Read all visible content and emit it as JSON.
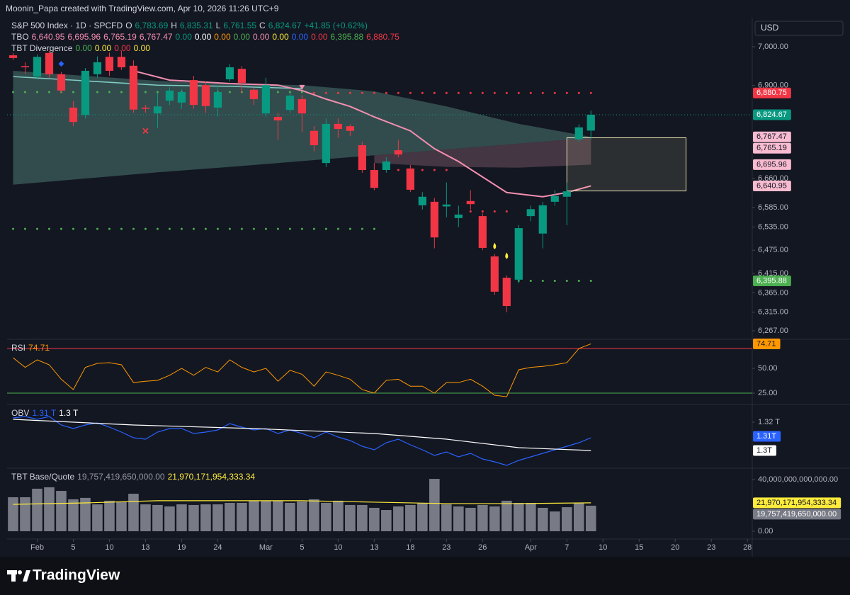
{
  "header": "Moonin_Papa created with TradingView.com, Apr 10, 2026 11:26 UTC+9",
  "currency": "USD",
  "footer": "TradingView",
  "chart_data": [
    {
      "type": "candlestick",
      "up_color": "#089981",
      "down_color": "#f23645",
      "open": [
        6978,
        6950,
        6923,
        6984,
        6929,
        6843,
        6824,
        6929,
        6974,
        6974,
        6951,
        6843,
        6828,
        6861,
        6856,
        6914,
        6901,
        6843,
        6916,
        6943,
        6889,
        6828,
        6819,
        6837,
        6865,
        6783,
        6700,
        6801,
        6795,
        6746,
        6682,
        6682,
        6733,
        6686,
        6591,
        6600,
        6588,
        6558,
        6602,
        6563,
        6459,
        6404,
        6399,
        6563,
        6518,
        6600,
        6613,
        6761,
        6783.69
      ],
      "high": [
        6984,
        6960,
        6980,
        6990,
        6935,
        6860,
        6945,
        6975,
        6985,
        6990,
        6965,
        6850,
        6880,
        6895,
        6890,
        6925,
        6910,
        6900,
        6955,
        6950,
        6895,
        6920,
        6830,
        6880,
        6875,
        6795,
        6815,
        6815,
        6800,
        6755,
        6700,
        6715,
        6760,
        6695,
        6625,
        6610,
        6650,
        6590,
        6630,
        6570,
        6465,
        6410,
        6540,
        6590,
        6600,
        6630,
        6650,
        6800,
        6835.31
      ],
      "low": [
        6966,
        6930,
        6915,
        6920,
        6880,
        6795,
        6815,
        6920,
        6925,
        6940,
        6830,
        6830,
        6790,
        6850,
        6840,
        6840,
        6830,
        6820,
        6910,
        6880,
        6850,
        6820,
        6760,
        6830,
        6780,
        6730,
        6690,
        6765,
        6770,
        6675,
        6630,
        6675,
        6715,
        6625,
        6580,
        6480,
        6560,
        6535,
        6580,
        6475,
        6360,
        6315,
        6390,
        6550,
        6480,
        6590,
        6540,
        6755,
        6761.55
      ],
      "close": [
        6971,
        6947,
        6974,
        6929,
        6887,
        6806,
        6938,
        6960,
        6938,
        6947,
        6838,
        6840,
        6846,
        6887,
        6883,
        6850,
        6847,
        6883,
        6947,
        6907,
        6865,
        6901,
        6810,
        6874,
        6828,
        6746,
        6801,
        6788,
        6783,
        6682,
        6636,
        6704,
        6722,
        6631,
        6613,
        6508,
        6593,
        6567,
        6594,
        6481,
        6368,
        6331,
        6532,
        6581,
        6591,
        6615,
        6627,
        6792,
        6824.67
      ],
      "xlim": [
        -0.5,
        61.4
      ],
      "ylim": [
        6247,
        7075
      ],
      "yticks": [
        {
          "value": 7000,
          "label": "7,000.00"
        },
        {
          "value": 6900,
          "label": "6,900.00"
        },
        {
          "value": 6660,
          "label": "6,660.00"
        },
        {
          "value": 6585,
          "label": "6,585.00"
        },
        {
          "value": 6535,
          "label": "6,535.00"
        },
        {
          "value": 6475,
          "label": "6,475.00"
        },
        {
          "value": 6415,
          "label": "6,415.00"
        },
        {
          "value": 6365,
          "label": "6,365.00"
        },
        {
          "value": 6315,
          "label": "6,315.00"
        },
        {
          "value": 6267,
          "label": "6,267.00"
        }
      ],
      "legend_rows": [
        [
          {
            "text": "S&P 500 Index · 1D · SPCFD",
            "color": "#d1d4dc"
          },
          {
            "text": "O",
            "color": "#d1d4dc"
          },
          {
            "text": "6,783.69",
            "color": "#089981"
          },
          {
            "text": "H",
            "color": "#d1d4dc"
          },
          {
            "text": "6,835.31",
            "color": "#089981"
          },
          {
            "text": "L",
            "color": "#d1d4dc"
          },
          {
            "text": "6,761.55",
            "color": "#089981"
          },
          {
            "text": "C",
            "color": "#d1d4dc"
          },
          {
            "text": "6,824.67",
            "color": "#089981"
          },
          {
            "text": "+41.85 (+0.62%)",
            "color": "#089981"
          }
        ],
        [
          {
            "text": "TBO",
            "color": "#d1d4dc"
          },
          {
            "text": "6,640.95",
            "color": "#f48fb1"
          },
          {
            "text": "6,695.96",
            "color": "#f48fb1"
          },
          {
            "text": "6,765.19",
            "color": "#f48fb1"
          },
          {
            "text": "6,767.47",
            "color": "#f48fb1"
          },
          {
            "text": "0.00",
            "color": "#089981"
          },
          {
            "text": "0.00",
            "color": "#ffffff"
          },
          {
            "text": "0.00",
            "color": "#ff9800"
          },
          {
            "text": "0.00",
            "color": "#4caf50"
          },
          {
            "text": "0.00",
            "color": "#f48fb1"
          },
          {
            "text": "0.00",
            "color": "#ffeb3b"
          },
          {
            "text": "0.00",
            "color": "#2962ff"
          },
          {
            "text": "0.00",
            "color": "#f23645"
          },
          {
            "text": "6,395.88",
            "color": "#4caf50"
          },
          {
            "text": "6,880.75",
            "color": "#f23645"
          }
        ],
        [
          {
            "text": "TBT Divergence",
            "color": "#d1d4dc"
          },
          {
            "text": "0.00",
            "color": "#4caf50"
          },
          {
            "text": "0.00",
            "color": "#ffeb3b"
          },
          {
            "text": "0.00",
            "color": "#f23645"
          },
          {
            "text": "0.00",
            "color": "#ffeb3b"
          }
        ]
      ],
      "overlays": [
        {
          "type": "area",
          "color": "#3e5f5c",
          "x": [
            0,
            6,
            12,
            18,
            24,
            30,
            36,
            42,
            48
          ],
          "upper": [
            6938,
            6925,
            6912,
            6905,
            6901,
            6885,
            6846,
            6801,
            6767.47
          ],
          "lower": [
            6644,
            6660,
            6676,
            6690,
            6705,
            6720,
            6735,
            6750,
            6765.19
          ]
        },
        {
          "type": "area",
          "color": "#56424f",
          "x": [
            30,
            36,
            42,
            48
          ],
          "upper": [
            6720,
            6735,
            6750,
            6765.19
          ],
          "lower": [
            6700,
            6690,
            6688,
            6695.96
          ]
        },
        {
          "type": "line",
          "color": "#80cbc4",
          "x": [
            0,
            6,
            12,
            18,
            24
          ],
          "values": [
            6923,
            6912,
            6901,
            6898,
            6892
          ]
        },
        {
          "type": "line",
          "color": "#f48fb1",
          "x": [
            10,
            13,
            18,
            22,
            24,
            26,
            28,
            30,
            33,
            35,
            37,
            39,
            41,
            44,
            46,
            48
          ],
          "values": [
            6938,
            6914,
            6905,
            6901,
            6887,
            6865,
            6846,
            6819,
            6783,
            6737,
            6704,
            6664,
            6624,
            6613,
            6624,
            6640.95
          ]
        }
      ],
      "levels": [
        {
          "value": 6883,
          "from": 0,
          "to": 24,
          "color": "#4caf50"
        },
        {
          "value": 6880.75,
          "from": 25,
          "to": 48,
          "color": "#f23645"
        },
        {
          "value": 6530,
          "from": 0,
          "to": 30,
          "color": "#4caf50"
        },
        {
          "value": 6682,
          "from": 32,
          "to": 36,
          "color": "#f23645"
        },
        {
          "value": 6575,
          "from": 38,
          "to": 41,
          "color": "#f23645"
        },
        {
          "value": 6395.88,
          "from": 42,
          "to": 48,
          "color": "#4caf50"
        }
      ],
      "box": {
        "from": 46,
        "to": 55.9,
        "top": 6765.19,
        "bottom": 6628,
        "color": "#e6dfb0"
      },
      "markers": [
        {
          "x": 4,
          "value": 6956,
          "shape": "diamond",
          "color": "#2962ff"
        },
        {
          "x": 11,
          "value": 6783,
          "shape": "cross",
          "color": "#f23645"
        },
        {
          "x": 24,
          "value": 6896,
          "shape": "triangle-down",
          "color": "#f48fb1"
        },
        {
          "x": 40,
          "value": 6485,
          "shape": "drop",
          "color": "#ffeb3b"
        },
        {
          "x": 41,
          "value": 6460,
          "shape": "drop",
          "color": "#ffeb3b"
        }
      ],
      "last_price_line": true,
      "price_labels": [
        {
          "value": 6880.75,
          "label": "6,880.75",
          "color": "#f23645",
          "text_color": "#ffffff"
        },
        {
          "value": 6824.67,
          "label": "6,824.67",
          "color": "#089981",
          "text_color": "#ffffff"
        },
        {
          "value": 6767.47,
          "label": "6,767.47",
          "color": "#f8bbd0",
          "text_color": "#131722"
        },
        {
          "value": 6765.19,
          "label": "6,765.19",
          "color": "#f8bbd0",
          "text_color": "#131722"
        },
        {
          "value": 6695.96,
          "label": "6,695.96",
          "color": "#f8bbd0",
          "text_color": "#131722"
        },
        {
          "value": 6640.95,
          "label": "6,640.95",
          "color": "#f8bbd0",
          "text_color": "#131722"
        },
        {
          "value": 6395.88,
          "label": "6,395.88",
          "color": "#4caf50",
          "text_color": "#ffffff"
        }
      ]
    },
    {
      "type": "line",
      "color": "#ff9800",
      "values": [
        60.7,
        51,
        58.6,
        53.6,
        39,
        28.6,
        51,
        55,
        55.7,
        53.6,
        35.7,
        37,
        37.9,
        43,
        50,
        43,
        51,
        46.4,
        58.6,
        51,
        46.4,
        50,
        37,
        48,
        44,
        32,
        46.4,
        43,
        39,
        28.6,
        25,
        37.9,
        39,
        32,
        32,
        25,
        35.7,
        35.7,
        39,
        32,
        22.9,
        21.4,
        48.6,
        51,
        52,
        53.6,
        55.7,
        70,
        74.71
      ],
      "xlim": [
        -0.5,
        61.4
      ],
      "ylim": [
        14.3,
        78.6
      ],
      "yticks": [
        {
          "value": 50,
          "label": "50.00"
        },
        {
          "value": 25,
          "label": "25.00"
        }
      ],
      "hlines": [
        {
          "value": 70,
          "color": "#f23645"
        },
        {
          "value": 25,
          "color": "#4caf50"
        }
      ],
      "legend_rows": [
        [
          {
            "text": "RSI",
            "color": "#d1d4dc"
          },
          {
            "text": "74.71",
            "color": "#ff9800"
          }
        ]
      ],
      "price_labels": [
        {
          "value": 74.71,
          "label": "74.71",
          "color": "#ff9800",
          "text_color": "#131722"
        }
      ]
    },
    {
      "type": "line",
      "series": [
        {
          "color": "#2962ff",
          "values": [
            1.323,
            1.324,
            1.322,
            1.324,
            1.318,
            1.3155,
            1.318,
            1.3195,
            1.3165,
            1.313,
            1.309,
            1.308,
            1.313,
            1.3155,
            1.3155,
            1.312,
            1.313,
            1.3145,
            1.319,
            1.3165,
            1.3145,
            1.3155,
            1.312,
            1.3145,
            1.312,
            1.309,
            1.313,
            1.3095,
            1.307,
            1.303,
            1.3005,
            1.3055,
            1.308,
            1.304,
            1.3005,
            1.2965,
            1.299,
            1.2955,
            1.298,
            1.294,
            1.292,
            1.2895,
            1.293,
            1.2955,
            1.298,
            1.3005,
            1.303,
            1.3055,
            1.309
          ]
        },
        {
          "color": "#ffffff",
          "x": [
            0,
            10,
            20,
            30,
            36,
            42,
            48
          ],
          "values": [
            1.322,
            1.318,
            1.3155,
            1.312,
            1.308,
            1.302,
            1.3
          ]
        }
      ],
      "xlim": [
        -0.5,
        61.4
      ],
      "ylim": [
        1.288,
        1.332
      ],
      "yticks": [
        {
          "value": 1.32,
          "label": "1.32 T"
        }
      ],
      "legend_rows": [
        [
          {
            "text": "OBV",
            "color": "#d1d4dc"
          },
          {
            "text": "1.31 T",
            "color": "#2962ff"
          },
          {
            "text": "1.3 T",
            "color": "#ffffff"
          }
        ]
      ],
      "price_labels": [
        {
          "value": 1.31,
          "label": "1.31T",
          "color": "#2962ff",
          "text_color": "#ffffff"
        },
        {
          "value": 1.3,
          "label": "1.3T",
          "color": "#ffffff",
          "text_color": "#131722"
        }
      ]
    },
    {
      "type": "bar",
      "color": "#787b86",
      "values": [
        26300000000000.0,
        26300000000000.0,
        32900000000000.0,
        34000000000000.0,
        31200000000000.0,
        24700000000000.0,
        25800000000000.0,
        20800000000000.0,
        23600000000000.0,
        23000000000000.0,
        29000000000000.0,
        20800000000000.0,
        20300000000000.0,
        19200000000000.0,
        20800000000000.0,
        20300000000000.0,
        20800000000000.0,
        20800000000000.0,
        21900000000000.0,
        21900000000000.0,
        23600000000000.0,
        23600000000000.0,
        23600000000000.0,
        21900000000000.0,
        23000000000000.0,
        24700000000000.0,
        21900000000000.0,
        23600000000000.0,
        20300000000000.0,
        20300000000000.0,
        18100000000000.0,
        16400000000000.0,
        19200000000000.0,
        20300000000000.0,
        21900000000000.0,
        40500000000000.0,
        20800000000000.0,
        19200000000000.0,
        18100000000000.0,
        20300000000000.0,
        19200000000000.0,
        23600000000000.0,
        21900000000000.0,
        21900000000000.0,
        18100000000000.0,
        15300000000000.0,
        18600000000000.0,
        21900000000000.0,
        19757419650000
      ],
      "series": [
        {
          "color": "#ffeb3b",
          "x": [
            0,
            6,
            12,
            18,
            24,
            30,
            36,
            42,
            48
          ],
          "values": [
            20800000000000.0,
            21900000000000.0,
            23600000000000.0,
            23600000000000.0,
            23600000000000.0,
            22500000000000.0,
            21400000000000.0,
            21400000000000.0,
            21970171954333.34
          ]
        }
      ],
      "xlim": [
        -0.5,
        61.4
      ],
      "ylim": [
        -5480000000000.0,
        48200000000000.0
      ],
      "yticks": [
        {
          "value": 40000000000000.0,
          "label": "40,000,000,000,000.00"
        },
        {
          "value": 0,
          "label": "0.00"
        }
      ],
      "legend_rows": [
        [
          {
            "text": "TBT Base/Quote",
            "color": "#d1d4dc"
          },
          {
            "text": "19,757,419,650,000.00",
            "color": "#9598a1"
          },
          {
            "text": "21,970,171,954,333.34",
            "color": "#ffeb3b"
          }
        ]
      ],
      "price_labels": [
        {
          "value": 21970171954333.34,
          "label": "21,970,171,954,333.34",
          "color": "#ffeb3b",
          "text_color": "#131722"
        },
        {
          "value": 19757419650000,
          "label": "19,757,419,650,000.00",
          "color": "#787b86",
          "text_color": "#ffffff"
        }
      ],
      "xticks": [
        {
          "value": 2,
          "label": "Feb"
        },
        {
          "value": 5,
          "label": "5"
        },
        {
          "value": 8,
          "label": "10"
        },
        {
          "value": 11,
          "label": "13"
        },
        {
          "value": 14,
          "label": "19"
        },
        {
          "value": 17,
          "label": "24"
        },
        {
          "value": 21,
          "label": "Mar"
        },
        {
          "value": 24,
          "label": "5"
        },
        {
          "value": 27,
          "label": "10"
        },
        {
          "value": 30,
          "label": "13"
        },
        {
          "value": 33,
          "label": "18"
        },
        {
          "value": 36,
          "label": "23"
        },
        {
          "value": 39,
          "label": "26"
        },
        {
          "value": 43,
          "label": "Apr"
        },
        {
          "value": 46,
          "label": "7"
        },
        {
          "value": 49,
          "label": "10"
        },
        {
          "value": 52,
          "label": "15"
        },
        {
          "value": 55,
          "label": "20"
        },
        {
          "value": 58,
          "label": "23"
        },
        {
          "value": 61,
          "label": "28"
        }
      ]
    }
  ]
}
